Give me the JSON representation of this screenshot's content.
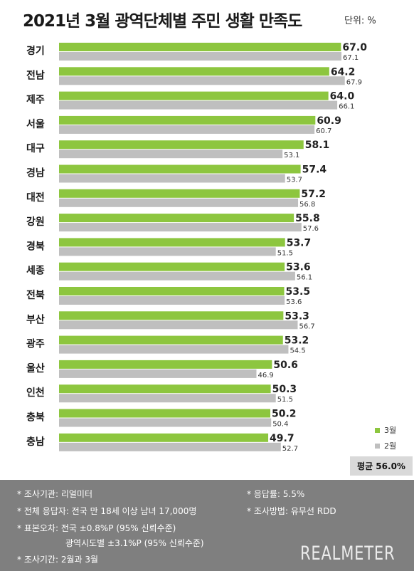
{
  "header": {
    "title": "2021년 3월 광역단체별 주민 생활 만족도",
    "unit": "단위: %"
  },
  "chart_data": {
    "type": "bar",
    "orientation": "horizontal",
    "categories": [
      "경기",
      "전남",
      "제주",
      "서울",
      "대구",
      "경남",
      "대전",
      "강원",
      "경북",
      "세종",
      "전북",
      "부산",
      "광주",
      "울산",
      "인천",
      "충북",
      "충남"
    ],
    "series": [
      {
        "name": "3월",
        "color": "#8dc63f",
        "values": [
          67.0,
          64.2,
          64.0,
          60.9,
          58.1,
          57.4,
          57.2,
          55.8,
          53.7,
          53.6,
          53.5,
          53.3,
          53.2,
          50.6,
          50.3,
          50.2,
          49.7
        ],
        "labels": [
          "67.0",
          "64.2",
          "64.0",
          "60.9",
          "58.1",
          "57.4",
          "57.2",
          "55.8",
          "53.7",
          "53.6",
          "53.5",
          "53.3",
          "53.2",
          "50.6",
          "50.3",
          "50.2",
          "49.7"
        ]
      },
      {
        "name": "2월",
        "color": "#bfbfbf",
        "values": [
          67.1,
          67.9,
          66.1,
          60.7,
          53.1,
          53.7,
          56.8,
          57.6,
          51.5,
          56.1,
          53.6,
          56.7,
          54.5,
          46.9,
          51.5,
          50.4,
          52.7
        ],
        "labels": [
          "67.1",
          "67.9",
          "66.1",
          "60.7",
          "53.1",
          "53.7",
          "56.8",
          "57.6",
          "51.5",
          "56.1",
          "53.6",
          "56.7",
          "54.5",
          "46.9",
          "51.5",
          "50.4",
          "52.7"
        ]
      }
    ],
    "title": "2021년 3월 광역단체별 주민 생활 만족도",
    "legend_position": "bottom-right",
    "grid": false
  },
  "legend": {
    "items": [
      {
        "label": "3월",
        "color": "#8dc63f"
      },
      {
        "label": "2월",
        "color": "#bfbfbf"
      }
    ]
  },
  "average": {
    "label": "평균 56.0%"
  },
  "footer": {
    "agency": "* 조사기관: 리얼미터",
    "response_rate": "* 응답률: 5.5%",
    "respondents": "* 전체 응답자: 전국 만 18세 이상 남녀 17,000명",
    "method": "* 조사방법: 유무선 RDD",
    "error_national": "* 표본오차: 전국 ±0.8%P (95% 신뢰수준)",
    "error_regional": "광역시도별 ±3.1%P (95% 신뢰수준)",
    "period": "* 조사기간: 2월과 3월",
    "brand": "REALMETER"
  }
}
